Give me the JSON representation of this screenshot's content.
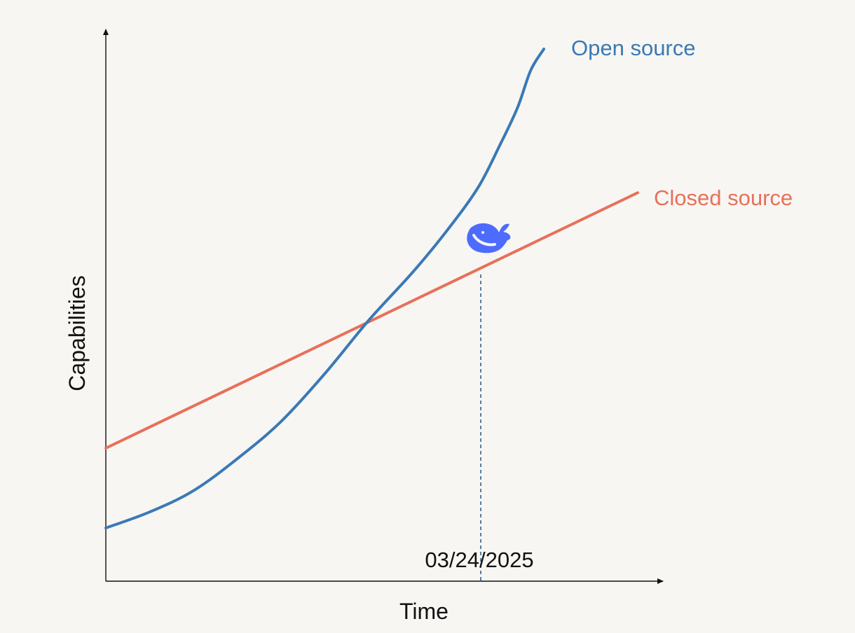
{
  "chart_data": {
    "type": "line",
    "title": "",
    "xlabel": "Time",
    "ylabel": "Capabilities",
    "annotations": {
      "crossover_date": "03/24/2025"
    },
    "series": [
      {
        "name": "Open source",
        "color": "#3a79b6",
        "shape": "exponential",
        "x": [
          0.0,
          0.1,
          0.2,
          0.3,
          0.4,
          0.5,
          0.6,
          0.7,
          0.78,
          0.85,
          0.9,
          0.94,
          0.97,
          1.0
        ],
        "y": [
          0.1,
          0.13,
          0.17,
          0.23,
          0.3,
          0.39,
          0.49,
          0.58,
          0.66,
          0.74,
          0.82,
          0.89,
          0.96,
          1.0
        ]
      },
      {
        "name": "Closed source",
        "color": "#e8705a",
        "shape": "linear",
        "x": [
          0.0,
          1.0
        ],
        "y": [
          0.25,
          0.73
        ]
      }
    ],
    "grid": false,
    "ticks": false,
    "logo_color": "#4d6bfe"
  }
}
